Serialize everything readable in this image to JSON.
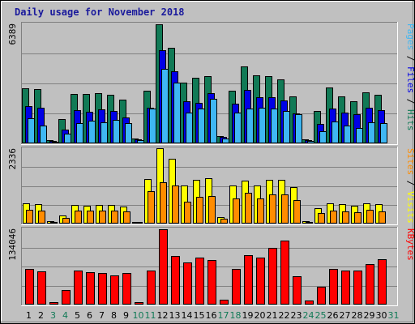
{
  "title": "Daily usage for November 2018",
  "colors": {
    "background": "#c0c0c0",
    "grid": "#808080",
    "hits": "#117a56",
    "files": "#0000e6",
    "pages": "#3fb7f3",
    "visits": "#ffff00",
    "sites": "#ff8c00",
    "kbytes": "#ff0000",
    "weekend_label": "#117a56",
    "title": "#1a1a9c"
  },
  "chart_data": [
    {
      "type": "bar",
      "panel": "hits-files-pages",
      "ymax_label": "6389",
      "ylim": [
        0,
        6389
      ],
      "right_label": [
        {
          "text": "Pages",
          "color": "#3fb7f3"
        },
        {
          "text": " / ",
          "color": "#000000"
        },
        {
          "text": "Files",
          "color": "#0000e6"
        },
        {
          "text": " / ",
          "color": "#000000"
        },
        {
          "text": "Hits",
          "color": "#117a56"
        }
      ],
      "categories": [
        "1",
        "2",
        "3",
        "4",
        "5",
        "6",
        "7",
        "8",
        "9",
        "10",
        "11",
        "12",
        "13",
        "14",
        "15",
        "16",
        "17",
        "18",
        "19",
        "20",
        "21",
        "22",
        "23",
        "24",
        "25",
        "26",
        "27",
        "28",
        "29",
        "30",
        "31"
      ],
      "series": [
        {
          "name": "Hits",
          "values": [
            2950,
            2880,
            170,
            1290,
            2650,
            2650,
            2680,
            2580,
            2330,
            250,
            2810,
            6350,
            5080,
            3240,
            3480,
            3570,
            370,
            2790,
            4080,
            3620,
            3590,
            3400,
            2490,
            220,
            1730,
            2960,
            2500,
            2250,
            2740,
            2580,
            0
          ]
        },
        {
          "name": "Files",
          "values": [
            1980,
            1900,
            140,
            730,
            1750,
            1670,
            1810,
            1720,
            1380,
            220,
            1920,
            4980,
            3860,
            2240,
            2150,
            2680,
            330,
            2120,
            2850,
            2450,
            2470,
            2290,
            1580,
            170,
            1040,
            1840,
            1640,
            1550,
            1890,
            1770,
            0
          ]
        },
        {
          "name": "Pages",
          "values": [
            1320,
            960,
            100,
            510,
            1060,
            1220,
            1110,
            1240,
            1070,
            180,
            1850,
            3950,
            3240,
            1650,
            1870,
            2360,
            280,
            1630,
            1860,
            1920,
            1870,
            1730,
            1570,
            150,
            650,
            1160,
            960,
            840,
            1130,
            1080,
            0
          ]
        }
      ]
    },
    {
      "type": "bar",
      "panel": "visits-sites",
      "ymax_label": "2336",
      "ylim": [
        0,
        2336
      ],
      "right_label": [
        {
          "text": "Sites",
          "color": "#ff8c00"
        },
        {
          "text": " / ",
          "color": "#000000"
        },
        {
          "text": "Visits",
          "color": "#ffff00"
        }
      ],
      "categories": [
        "1",
        "2",
        "3",
        "4",
        "5",
        "6",
        "7",
        "8",
        "9",
        "10",
        "11",
        "12",
        "13",
        "14",
        "15",
        "16",
        "17",
        "18",
        "19",
        "20",
        "21",
        "22",
        "23",
        "24",
        "25",
        "26",
        "27",
        "28",
        "29",
        "30",
        "31"
      ],
      "series": [
        {
          "name": "Visits",
          "values": [
            620,
            610,
            70,
            240,
            570,
            550,
            570,
            570,
            530,
            50,
            1380,
            2330,
            2000,
            1190,
            1360,
            1400,
            200,
            1170,
            1340,
            1190,
            1360,
            1360,
            1130,
            70,
            480,
            620,
            600,
            550,
            620,
            600,
            0
          ]
        },
        {
          "name": "Sites",
          "values": [
            420,
            410,
            50,
            170,
            410,
            390,
            400,
            390,
            370,
            40,
            1010,
            1270,
            1190,
            690,
            830,
            860,
            150,
            790,
            960,
            770,
            910,
            910,
            730,
            50,
            330,
            410,
            380,
            360,
            430,
            380,
            0
          ]
        }
      ]
    },
    {
      "type": "bar",
      "panel": "kbytes",
      "ymax_label": "134046",
      "ylim": [
        0,
        134046
      ],
      "right_label": [
        {
          "text": "KBytes",
          "color": "#ff0000"
        }
      ],
      "categories": [
        "1",
        "2",
        "3",
        "4",
        "5",
        "6",
        "7",
        "8",
        "9",
        "10",
        "11",
        "12",
        "13",
        "14",
        "15",
        "16",
        "17",
        "18",
        "19",
        "20",
        "21",
        "22",
        "23",
        "24",
        "25",
        "26",
        "27",
        "28",
        "29",
        "30",
        "31"
      ],
      "series": [
        {
          "name": "KBytes",
          "values": [
            63100,
            58200,
            4800,
            25700,
            59600,
            57000,
            56000,
            50800,
            55700,
            4900,
            59400,
            132800,
            85500,
            74700,
            82500,
            78200,
            9000,
            62100,
            86500,
            83300,
            99300,
            112000,
            49300,
            7300,
            31800,
            62100,
            59600,
            60300,
            71700,
            79200,
            0
          ]
        }
      ]
    }
  ]
}
